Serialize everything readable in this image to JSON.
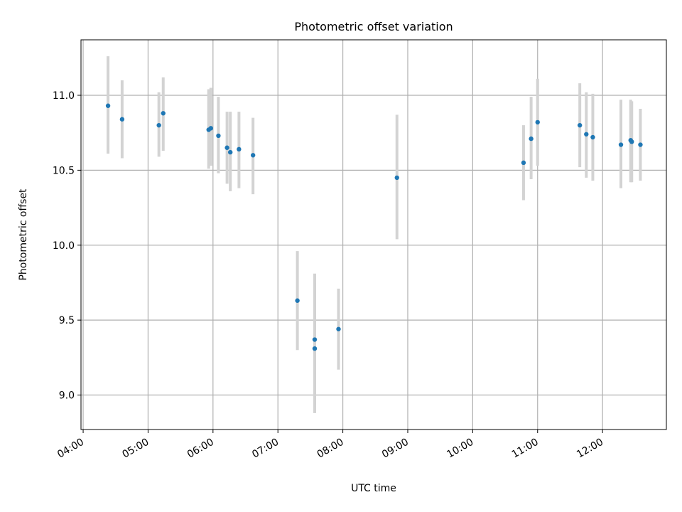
{
  "chart_data": {
    "type": "scatter",
    "title": "Photometric offset variation",
    "xlabel": "UTC time",
    "ylabel": "Photometric offset",
    "xlim": [
      "03:58",
      "12:59"
    ],
    "ylim": [
      8.77,
      11.37
    ],
    "x_ticks": [
      "04:00",
      "05:00",
      "06:00",
      "07:00",
      "08:00",
      "09:00",
      "10:00",
      "11:00",
      "12:00"
    ],
    "y_ticks": [
      9.0,
      9.5,
      10.0,
      10.5,
      11.0
    ],
    "y_tick_labels": [
      "9.0",
      "9.5",
      "10.0",
      "10.5",
      "11.0"
    ],
    "grid": true,
    "colors": {
      "point": "#1f77b4",
      "errorbar": "#d3d3d3",
      "grid": "#b0b0b0"
    },
    "points": [
      {
        "x": "04:23",
        "y": 10.93,
        "err_low": 10.61,
        "err_high": 11.26
      },
      {
        "x": "04:36",
        "y": 10.84,
        "err_low": 10.58,
        "err_high": 11.1
      },
      {
        "x": "05:10",
        "y": 10.8,
        "err_low": 10.59,
        "err_high": 11.02
      },
      {
        "x": "05:14",
        "y": 10.88,
        "err_low": 10.63,
        "err_high": 11.12
      },
      {
        "x": "05:56",
        "y": 10.77,
        "err_low": 10.51,
        "err_high": 11.04
      },
      {
        "x": "05:58",
        "y": 10.78,
        "err_low": 10.53,
        "err_high": 11.05
      },
      {
        "x": "06:05",
        "y": 10.73,
        "err_low": 10.48,
        "err_high": 10.99
      },
      {
        "x": "06:13",
        "y": 10.65,
        "err_low": 10.41,
        "err_high": 10.89
      },
      {
        "x": "06:16",
        "y": 10.62,
        "err_low": 10.36,
        "err_high": 10.89
      },
      {
        "x": "06:24",
        "y": 10.64,
        "err_low": 10.38,
        "err_high": 10.89
      },
      {
        "x": "06:37",
        "y": 10.6,
        "err_low": 10.34,
        "err_high": 10.85
      },
      {
        "x": "07:18",
        "y": 9.63,
        "err_low": 9.3,
        "err_high": 9.96
      },
      {
        "x": "07:34",
        "y": 9.37,
        "err_low": 8.93,
        "err_high": 9.81
      },
      {
        "x": "07:34",
        "y": 9.31,
        "err_low": 8.88,
        "err_high": 9.75
      },
      {
        "x": "07:56",
        "y": 9.44,
        "err_low": 9.17,
        "err_high": 9.71
      },
      {
        "x": "08:50",
        "y": 10.45,
        "err_low": 10.04,
        "err_high": 10.87
      },
      {
        "x": "10:47",
        "y": 10.55,
        "err_low": 10.3,
        "err_high": 10.8
      },
      {
        "x": "10:54",
        "y": 10.71,
        "err_low": 10.44,
        "err_high": 10.99
      },
      {
        "x": "11:00",
        "y": 10.82,
        "err_low": 10.53,
        "err_high": 11.11
      },
      {
        "x": "11:39",
        "y": 10.8,
        "err_low": 10.52,
        "err_high": 11.08
      },
      {
        "x": "11:45",
        "y": 10.74,
        "err_low": 10.45,
        "err_high": 11.02
      },
      {
        "x": "11:51",
        "y": 10.72,
        "err_low": 10.43,
        "err_high": 11.01
      },
      {
        "x": "12:17",
        "y": 10.67,
        "err_low": 10.38,
        "err_high": 10.97
      },
      {
        "x": "12:26",
        "y": 10.7,
        "err_low": 10.42,
        "err_high": 10.97
      },
      {
        "x": "12:27",
        "y": 10.69,
        "err_low": 10.42,
        "err_high": 10.96
      },
      {
        "x": "12:35",
        "y": 10.67,
        "err_low": 10.43,
        "err_high": 10.91
      }
    ]
  }
}
